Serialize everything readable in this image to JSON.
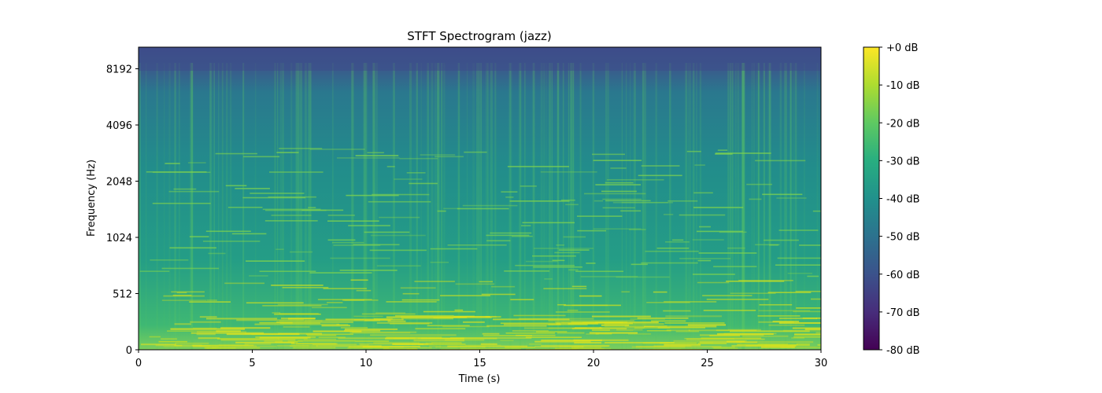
{
  "chart_data": {
    "type": "heatmap",
    "title": "STFT Spectrogram (jazz)",
    "xlabel": "Time (s)",
    "ylabel": "Frequency (Hz)",
    "x_ticks": [
      "0",
      "5",
      "10",
      "15",
      "20",
      "25",
      "30"
    ],
    "x_tick_values": [
      0,
      5,
      10,
      15,
      20,
      25,
      30
    ],
    "xlim": [
      0,
      30
    ],
    "y_scale": "symlog",
    "y_ticks": [
      "0",
      "512",
      "1024",
      "2048",
      "4096",
      "8192"
    ],
    "y_tick_values": [
      0,
      512,
      1024,
      2048,
      4096,
      8192
    ],
    "ylim": [
      0,
      11025
    ],
    "colormap": "viridis",
    "colorbar": {
      "ticks": [
        "+0 dB",
        "-10 dB",
        "-20 dB",
        "-30 dB",
        "-40 dB",
        "-50 dB",
        "-60 dB",
        "-70 dB",
        "-80 dB"
      ],
      "tick_values": [
        0,
        -10,
        -20,
        -30,
        -40,
        -50,
        -60,
        -70,
        -80
      ],
      "range": [
        -80,
        0
      ]
    },
    "grid": false
  }
}
